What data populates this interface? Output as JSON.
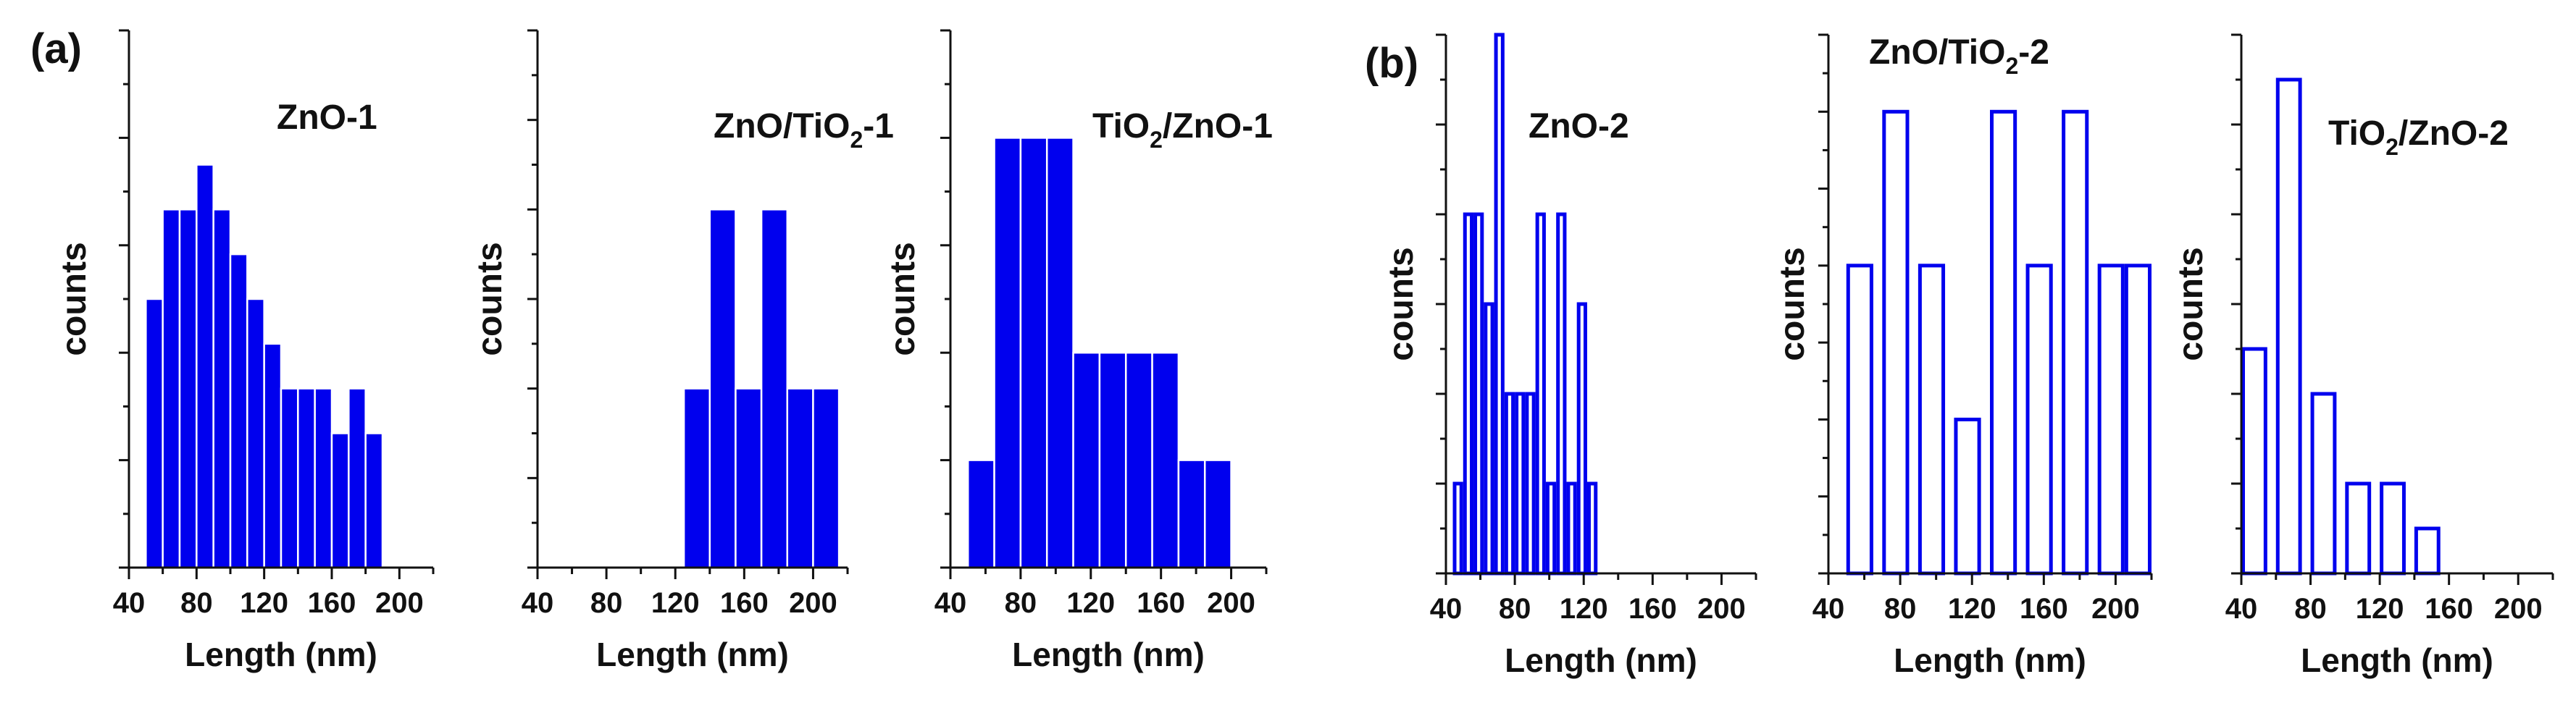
{
  "figure": {
    "panel_labels": {
      "a": "(a)",
      "b": "(b)"
    }
  },
  "chart_data": [
    {
      "type": "bar",
      "panel": "(a)",
      "title": "ZnO-1",
      "xlabel": "Length (nm)",
      "ylabel": "counts",
      "xlim": [
        40,
        220
      ],
      "ylim": [
        0,
        12
      ],
      "x_ticks": [
        40,
        80,
        120,
        160,
        200
      ],
      "y_ticks_unlabeled": true,
      "fill": "solid",
      "color": "#0000ee",
      "bin_width": 10,
      "bins": [
        {
          "start": 50,
          "value": 6
        },
        {
          "start": 60,
          "value": 8
        },
        {
          "start": 70,
          "value": 8
        },
        {
          "start": 80,
          "value": 9
        },
        {
          "start": 90,
          "value": 8
        },
        {
          "start": 100,
          "value": 7
        },
        {
          "start": 110,
          "value": 6
        },
        {
          "start": 120,
          "value": 5
        },
        {
          "start": 130,
          "value": 4
        },
        {
          "start": 140,
          "value": 4
        },
        {
          "start": 150,
          "value": 4
        },
        {
          "start": 160,
          "value": 3
        },
        {
          "start": 170,
          "value": 4
        },
        {
          "start": 180,
          "value": 3
        }
      ]
    },
    {
      "type": "bar",
      "panel": "(a)",
      "title": "ZnO/TiO2-1",
      "title_parts": [
        "ZnO/TiO",
        "2",
        "-1"
      ],
      "xlabel": "Length (nm)",
      "ylabel": "counts",
      "xlim": [
        40,
        220
      ],
      "ylim": [
        0,
        6
      ],
      "x_ticks": [
        40,
        80,
        120,
        160,
        200
      ],
      "y_ticks_unlabeled": true,
      "fill": "solid",
      "color": "#0000ee",
      "bin_width": 15,
      "bins": [
        {
          "start": 125,
          "value": 2
        },
        {
          "start": 140,
          "value": 4
        },
        {
          "start": 155,
          "value": 2
        },
        {
          "start": 170,
          "value": 4
        },
        {
          "start": 185,
          "value": 2
        },
        {
          "start": 200,
          "value": 2
        }
      ]
    },
    {
      "type": "bar",
      "panel": "(a)",
      "title": "TiO2/ZnO-1",
      "title_parts": [
        "TiO",
        "2",
        "/ZnO-1"
      ],
      "xlabel": "Length (nm)",
      "ylabel": "counts",
      "xlim": [
        40,
        220
      ],
      "ylim": [
        0,
        5
      ],
      "x_ticks": [
        40,
        80,
        120,
        160,
        200
      ],
      "y_ticks_unlabeled": true,
      "fill": "solid",
      "color": "#0000ee",
      "bin_width": 15,
      "bins": [
        {
          "start": 50,
          "value": 1
        },
        {
          "start": 65,
          "value": 4
        },
        {
          "start": 80,
          "value": 4
        },
        {
          "start": 95,
          "value": 4
        },
        {
          "start": 110,
          "value": 2
        },
        {
          "start": 125,
          "value": 2
        },
        {
          "start": 140,
          "value": 2
        },
        {
          "start": 155,
          "value": 2
        },
        {
          "start": 170,
          "value": 1
        },
        {
          "start": 185,
          "value": 1
        }
      ]
    },
    {
      "type": "bar",
      "panel": "(b)",
      "title": "ZnO-2",
      "xlabel": "Length (nm)",
      "ylabel": "counts",
      "xlim": [
        40,
        220
      ],
      "ylim": [
        0,
        6
      ],
      "x_ticks": [
        40,
        80,
        120,
        160,
        200
      ],
      "y_ticks_unlabeled": true,
      "fill": "outline",
      "color": "#0000ee",
      "bin_width": 6,
      "bins": [
        {
          "start": 44,
          "value": 1
        },
        {
          "start": 50,
          "value": 4
        },
        {
          "start": 56,
          "value": 4
        },
        {
          "start": 62,
          "value": 3
        },
        {
          "start": 68,
          "value": 6
        },
        {
          "start": 74,
          "value": 2
        },
        {
          "start": 80,
          "value": 2
        },
        {
          "start": 86,
          "value": 2
        },
        {
          "start": 92,
          "value": 4
        },
        {
          "start": 98,
          "value": 1
        },
        {
          "start": 104,
          "value": 4
        },
        {
          "start": 110,
          "value": 1
        },
        {
          "start": 116,
          "value": 3
        },
        {
          "start": 122,
          "value": 1
        }
      ]
    },
    {
      "type": "bar",
      "panel": "(b)",
      "title": "ZnO/TiO2-2",
      "title_parts": [
        "ZnO/TiO",
        "2",
        "-2"
      ],
      "xlabel": "Length (nm)",
      "ylabel": "counts",
      "xlim": [
        40,
        220
      ],
      "ylim": [
        0,
        7
      ],
      "x_ticks": [
        40,
        80,
        120,
        160,
        200
      ],
      "y_ticks_unlabeled": true,
      "fill": "outline",
      "color": "#0000ee",
      "bin_width": 15,
      "bins": [
        {
          "start": 50,
          "value": 4
        },
        {
          "start": 70,
          "value": 6
        },
        {
          "start": 90,
          "value": 4
        },
        {
          "start": 110,
          "value": 2
        },
        {
          "start": 130,
          "value": 6
        },
        {
          "start": 150,
          "value": 4
        },
        {
          "start": 170,
          "value": 6
        },
        {
          "start": 190,
          "value": 4
        },
        {
          "start": 205,
          "value": 4
        }
      ]
    },
    {
      "type": "bar",
      "panel": "(b)",
      "title": "TiO2/ZnO-2",
      "title_parts": [
        "TiO",
        "2",
        "/ZnO-2"
      ],
      "xlabel": "Length (nm)",
      "ylabel": "counts",
      "xlim": [
        40,
        220
      ],
      "ylim": [
        0,
        12
      ],
      "x_ticks": [
        40,
        80,
        120,
        160,
        200
      ],
      "y_ticks_unlabeled": true,
      "fill": "outline",
      "color": "#0000ee",
      "bin_width": 15,
      "bins": [
        {
          "start": 40,
          "value": 5
        },
        {
          "start": 60,
          "value": 11
        },
        {
          "start": 80,
          "value": 4
        },
        {
          "start": 100,
          "value": 2
        },
        {
          "start": 120,
          "value": 2
        },
        {
          "start": 140,
          "value": 1
        }
      ]
    }
  ]
}
